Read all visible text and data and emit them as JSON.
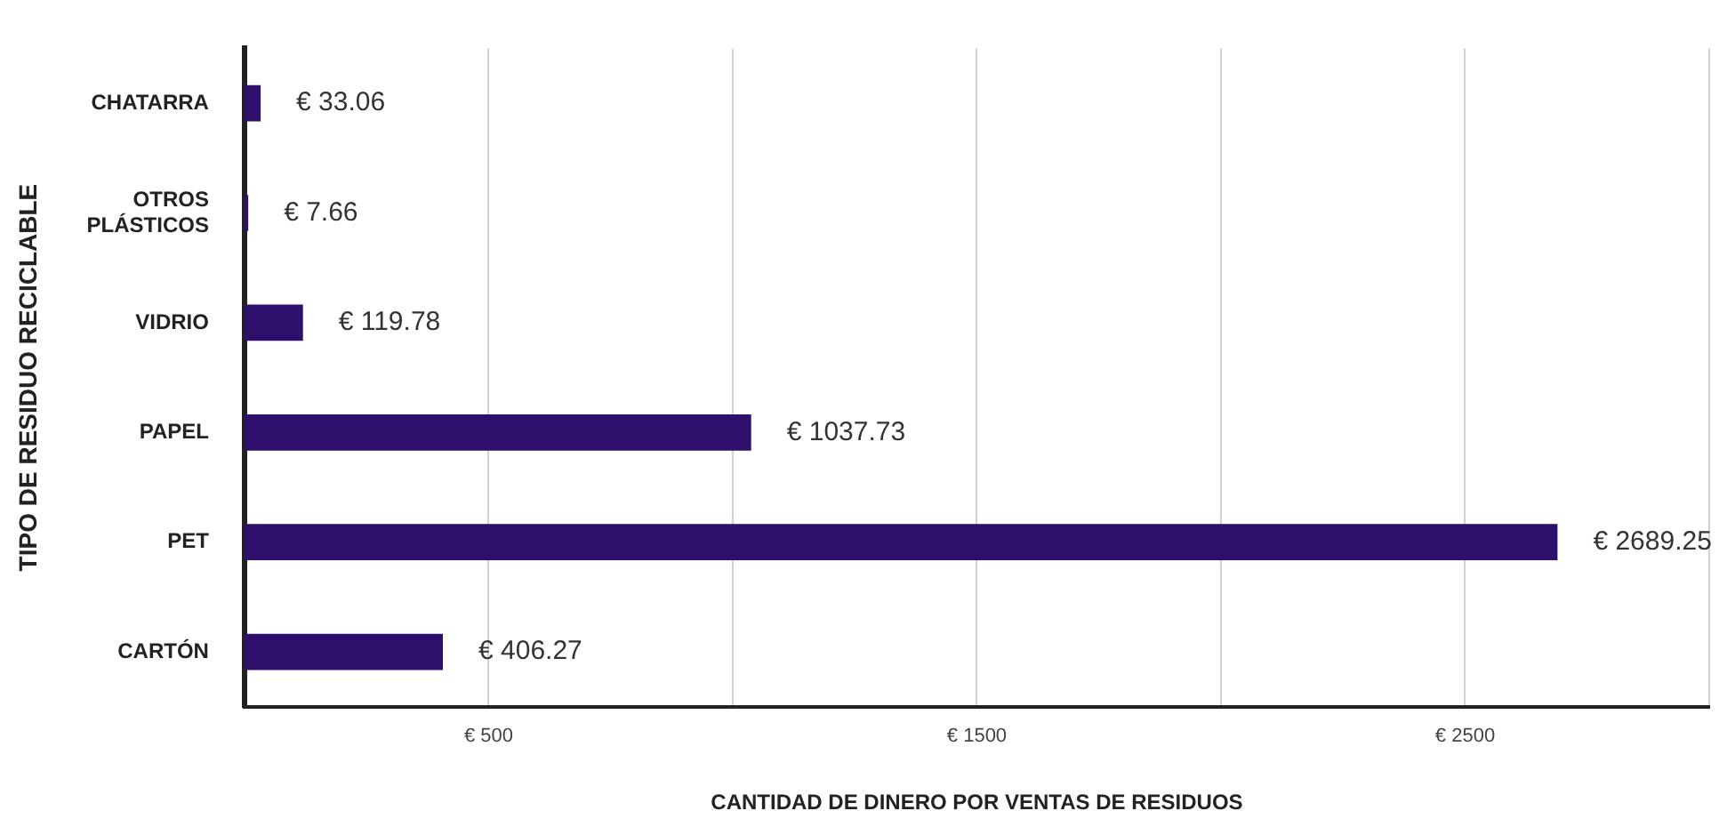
{
  "chart_data": {
    "type": "bar",
    "orientation": "horizontal",
    "xlabel": "CANTIDAD DE DINERO POR VENTAS DE RESIDUOS",
    "ylabel": "TIPO DE RESIDUO RECICLABLE",
    "categories": [
      "CHATARRA",
      "OTROS PLÁSTICOS",
      "VIDRIO",
      "PAPEL",
      "PET",
      "CARTÓN"
    ],
    "values": [
      33.06,
      7.66,
      119.78,
      1037.73,
      2689.25,
      406.27
    ],
    "value_labels": [
      "€ 33.06",
      "€ 7.66",
      "€ 119.78",
      "€ 1037.73",
      "€ 2689.25",
      "€ 406.27"
    ],
    "color": "#2e0f6b",
    "xlim": [
      0,
      3000
    ],
    "xticks": [
      {
        "value": 500,
        "label": "€ 500"
      },
      {
        "value": 1000,
        "label": null
      },
      {
        "value": 1500,
        "label": "€ 1500"
      },
      {
        "value": 2000,
        "label": null
      },
      {
        "value": 2500,
        "label": "€ 2500"
      },
      {
        "value": 3000,
        "label": null
      }
    ],
    "grid": "x",
    "legend": false
  }
}
